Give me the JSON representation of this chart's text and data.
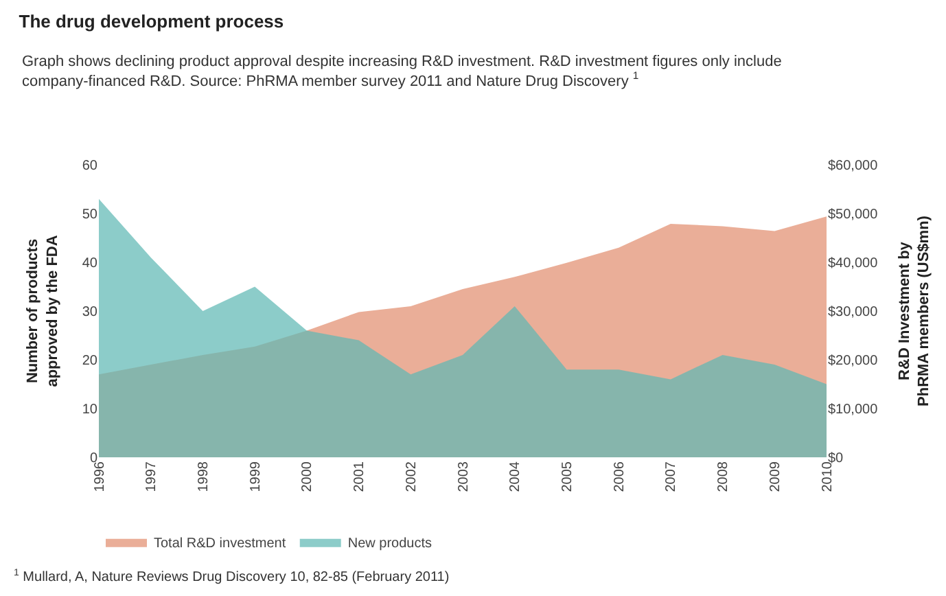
{
  "chart_data": {
    "type": "area",
    "title": "The drug development process",
    "subtitle": "Graph shows declining product approval despite increasing R&D investment. R&D investment figures only include\ncompany-financed R&D. Source: PhRMA member survey 2011 and Nature Drug Discovery $^{1}$",
    "ylabel": "Number of products\napproved by the FDA",
    "y2label": "R&D Investment by\nPhRMA members (US$mn)",
    "x": [
      1996,
      1997,
      1998,
      1999,
      2000,
      2001,
      2002,
      2003,
      2004,
      2005,
      2006,
      2007,
      2008,
      2009,
      2010
    ],
    "series": [
      {
        "name": "Total R&D investment",
        "color": "#eaae98",
        "axis": "y2",
        "values": [
          17000,
          19000,
          21000,
          22700,
          26000,
          29800,
          31000,
          34500,
          37000,
          39900,
          43000,
          47900,
          47400,
          46400,
          49400
        ]
      },
      {
        "name": "New products",
        "color": "#5fb8b4",
        "values": [
          53,
          41,
          30,
          35,
          26,
          24,
          17,
          21,
          31,
          18,
          18,
          16,
          21,
          19,
          15
        ]
      }
    ],
    "xlim": [
      1996,
      2010
    ],
    "xticks": [
      1996,
      1997,
      1998,
      1999,
      2000,
      2001,
      2002,
      2003,
      2004,
      2005,
      2006,
      2007,
      2008,
      2009,
      2010
    ],
    "ylim": [
      0,
      60
    ],
    "yticks": [
      0,
      10,
      20,
      30,
      40,
      50,
      60
    ],
    "y2lim": [
      0,
      60000
    ],
    "y2ticks": [
      {
        "value": 0,
        "label": "$0"
      },
      {
        "value": 10000,
        "label": "$10,000"
      },
      {
        "value": 20000,
        "label": "$20,000"
      },
      {
        "value": 30000,
        "label": "$30,000"
      },
      {
        "value": 40000,
        "label": "$40,000"
      },
      {
        "value": 50000,
        "label": "$50,000"
      },
      {
        "value": 60000,
        "label": "$60,000"
      }
    ],
    "legend": "bottom left",
    "annotations": [
      "$^{1}$ Mullard, A, Nature Reviews Drug Discovery 10, 82-85 (February 2011)"
    ]
  }
}
